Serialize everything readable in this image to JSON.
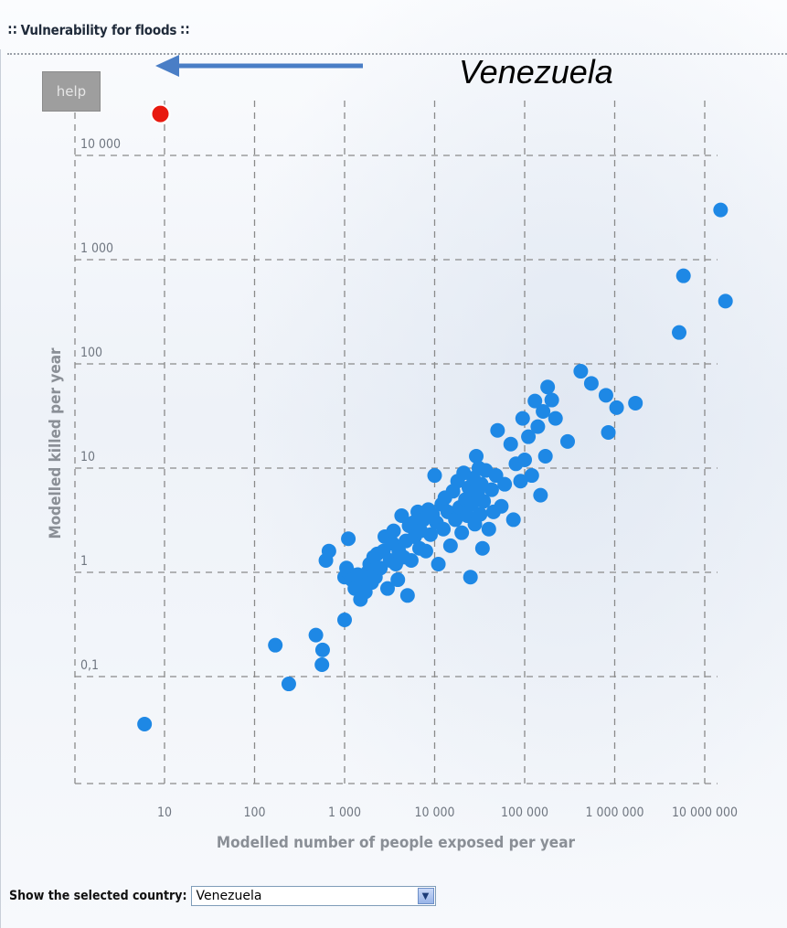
{
  "panel": {
    "title": "∷ Vulnerability for floods ∷",
    "help_label": "help",
    "annotation": "Venezuela"
  },
  "country_selector": {
    "label": "Show the selected country:",
    "selected": "Venezuela"
  },
  "colors": {
    "points": "#1e88e5",
    "highlight": "#e8190f",
    "grid": "#8a8a8a",
    "arrow": "#4a7ec6"
  },
  "icons": {
    "select_arrow": "chevron-down-icon",
    "annotation": "arrow-left-icon"
  },
  "chart_data": {
    "type": "scatter",
    "xlabel": "Modelled number of people exposed per year",
    "ylabel": "Modelled killed per year",
    "x_scale": "log",
    "y_scale": "log",
    "xlim": [
      1,
      20000000
    ],
    "ylim": [
      0.01,
      30000
    ],
    "grid": true,
    "x_ticks": [
      {
        "value": 10,
        "label": "10"
      },
      {
        "value": 100,
        "label": "100"
      },
      {
        "value": 1000,
        "label": "1 000"
      },
      {
        "value": 10000,
        "label": "10 000"
      },
      {
        "value": 100000,
        "label": "100 000"
      },
      {
        "value": 1000000,
        "label": "1 000 000"
      },
      {
        "value": 10000000,
        "label": "10 000 000"
      }
    ],
    "y_ticks": [
      {
        "value": 0.1,
        "label": "0,1"
      },
      {
        "value": 1,
        "label": "1"
      },
      {
        "value": 10,
        "label": "10"
      },
      {
        "value": 100,
        "label": "100"
      },
      {
        "value": 1000,
        "label": "1 000"
      },
      {
        "value": 10000,
        "label": "10 000"
      }
    ],
    "highlight": {
      "x": 9,
      "y": 25000
    },
    "points": [
      [
        6,
        0.035
      ],
      [
        170,
        0.2
      ],
      [
        240,
        0.085
      ],
      [
        480,
        0.25
      ],
      [
        560,
        0.13
      ],
      [
        570,
        0.18
      ],
      [
        1000,
        0.35
      ],
      [
        620,
        1.3
      ],
      [
        670,
        1.6
      ],
      [
        1100,
        2.1
      ],
      [
        1000,
        0.9
      ],
      [
        1050,
        1.1
      ],
      [
        1100,
        1.0
      ],
      [
        1200,
        0.85
      ],
      [
        1300,
        0.7
      ],
      [
        1400,
        0.95
      ],
      [
        1500,
        0.55
      ],
      [
        1600,
        0.75
      ],
      [
        1700,
        0.65
      ],
      [
        1800,
        1.0
      ],
      [
        1900,
        1.2
      ],
      [
        2000,
        0.8
      ],
      [
        2100,
        1.4
      ],
      [
        2200,
        0.9
      ],
      [
        2300,
        1.5
      ],
      [
        2500,
        1.1
      ],
      [
        2700,
        1.6
      ],
      [
        2800,
        2.2
      ],
      [
        3000,
        0.7
      ],
      [
        3200,
        1.3
      ],
      [
        3400,
        1.9
      ],
      [
        3500,
        2.5
      ],
      [
        3700,
        1.2
      ],
      [
        3900,
        0.85
      ],
      [
        4000,
        1.6
      ],
      [
        4300,
        3.5
      ],
      [
        4500,
        1.4
      ],
      [
        4800,
        2.0
      ],
      [
        5000,
        0.6
      ],
      [
        5200,
        2.8
      ],
      [
        5500,
        1.3
      ],
      [
        5800,
        3.0
      ],
      [
        6000,
        2.2
      ],
      [
        6500,
        3.8
      ],
      [
        6800,
        1.7
      ],
      [
        7000,
        2.5
      ],
      [
        7500,
        3.2
      ],
      [
        8000,
        1.6
      ],
      [
        8500,
        4.0
      ],
      [
        9000,
        2.3
      ],
      [
        9500,
        3.6
      ],
      [
        10000,
        8.5
      ],
      [
        10500,
        3.0
      ],
      [
        11000,
        1.2
      ],
      [
        12000,
        4.5
      ],
      [
        12500,
        2.6
      ],
      [
        13000,
        5.2
      ],
      [
        14000,
        3.8
      ],
      [
        15000,
        1.8
      ],
      [
        16000,
        6.0
      ],
      [
        17000,
        3.2
      ],
      [
        18000,
        7.5
      ],
      [
        19000,
        4.2
      ],
      [
        20000,
        2.4
      ],
      [
        21000,
        9.0
      ],
      [
        22000,
        5.0
      ],
      [
        23000,
        3.5
      ],
      [
        24000,
        6.5
      ],
      [
        25000,
        0.9
      ],
      [
        26000,
        4.5
      ],
      [
        27000,
        8.0
      ],
      [
        28000,
        2.9
      ],
      [
        29000,
        13
      ],
      [
        30000,
        5.8
      ],
      [
        31000,
        10
      ],
      [
        32000,
        3.6
      ],
      [
        33000,
        7.0
      ],
      [
        34000,
        1.7
      ],
      [
        35000,
        4.8
      ],
      [
        37000,
        9.5
      ],
      [
        40000,
        2.6
      ],
      [
        43000,
        6.2
      ],
      [
        45000,
        3.8
      ],
      [
        48000,
        8.5
      ],
      [
        50000,
        23
      ],
      [
        55000,
        4.3
      ],
      [
        60000,
        7.0
      ],
      [
        70000,
        17
      ],
      [
        75000,
        3.2
      ],
      [
        80000,
        11
      ],
      [
        90000,
        7.5
      ],
      [
        95000,
        30
      ],
      [
        100000,
        12
      ],
      [
        110000,
        20
      ],
      [
        120000,
        8.5
      ],
      [
        130000,
        44
      ],
      [
        140000,
        25
      ],
      [
        150000,
        5.5
      ],
      [
        160000,
        35
      ],
      [
        170000,
        13
      ],
      [
        180000,
        60
      ],
      [
        200000,
        45
      ],
      [
        220000,
        30
      ],
      [
        300000,
        18
      ],
      [
        420000,
        85
      ],
      [
        550000,
        65
      ],
      [
        800000,
        50
      ],
      [
        850000,
        22
      ],
      [
        1050000,
        38
      ],
      [
        1700000,
        42
      ],
      [
        5200000,
        200
      ],
      [
        5800000,
        700
      ],
      [
        15000000,
        3000
      ],
      [
        17000000,
        400
      ]
    ]
  }
}
